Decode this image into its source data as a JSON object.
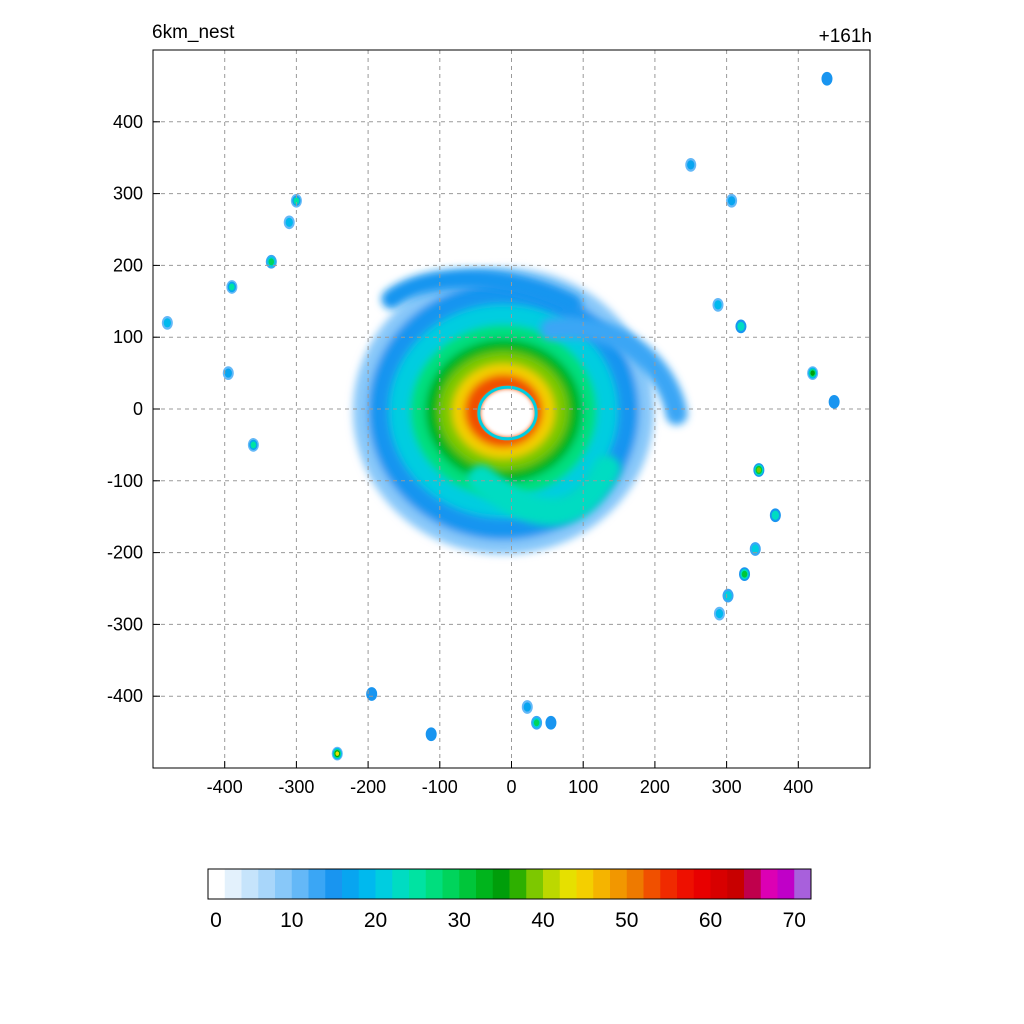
{
  "panel": {
    "left_title": "6km_nest",
    "right_title": "+161h"
  },
  "chart_data": {
    "type": "heatmap",
    "title": "6km_nest",
    "time_label": "+161h",
    "xlabel": "",
    "ylabel": "",
    "xlim": [
      -500,
      500
    ],
    "ylim": [
      -500,
      500
    ],
    "x_ticks": [
      -400,
      -300,
      -200,
      -100,
      0,
      100,
      200,
      300,
      400
    ],
    "y_ticks": [
      -400,
      -300,
      -200,
      -100,
      0,
      100,
      200,
      300,
      400
    ],
    "grid": true,
    "colorbar": {
      "min": 0,
      "max": 72,
      "step": 2,
      "tick_values": [
        0,
        10,
        20,
        30,
        40,
        50,
        60,
        70
      ],
      "colors": [
        "#ffffff",
        "#e3f1fc",
        "#c6e4fb",
        "#a8d6fa",
        "#88c8f9",
        "#64b8f7",
        "#3aa6f5",
        "#1995f0",
        "#08a5f0",
        "#00b9ee",
        "#00cde0",
        "#00dcc2",
        "#00e3a2",
        "#00de7e",
        "#00d45c",
        "#00c63a",
        "#00b41c",
        "#009e0a",
        "#2eb000",
        "#7dc800",
        "#bcd800",
        "#e6e000",
        "#f4cf00",
        "#f5b400",
        "#f29700",
        "#ee7a00",
        "#f05000",
        "#f02a00",
        "#ee1000",
        "#e80000",
        "#d80000",
        "#c80000",
        "#c0004c",
        "#dc00b4",
        "#c000c8",
        "#a860dc"
      ]
    },
    "field_features": {
      "storm_center": [
        0,
        0
      ],
      "eye_radius_km": 40,
      "max_value_near_center": 52,
      "scattered_cells": [
        {
          "x": 440,
          "y": 460,
          "v": 14
        },
        {
          "x": 250,
          "y": 340,
          "v": 16
        },
        {
          "x": 307,
          "y": 290,
          "v": 16
        },
        {
          "x": -300,
          "y": 290,
          "v": 24
        },
        {
          "x": -310,
          "y": 260,
          "v": 18
        },
        {
          "x": -335,
          "y": 205,
          "v": 28
        },
        {
          "x": -390,
          "y": 170,
          "v": 24
        },
        {
          "x": -480,
          "y": 120,
          "v": 18
        },
        {
          "x": -395,
          "y": 50,
          "v": 16
        },
        {
          "x": -360,
          "y": -50,
          "v": 24
        },
        {
          "x": 288,
          "y": 145,
          "v": 18
        },
        {
          "x": 320,
          "y": 115,
          "v": 22
        },
        {
          "x": 420,
          "y": 50,
          "v": 34
        },
        {
          "x": 450,
          "y": 10,
          "v": 14
        },
        {
          "x": 345,
          "y": -85,
          "v": 38
        },
        {
          "x": 368,
          "y": -148,
          "v": 22
        },
        {
          "x": 340,
          "y": -195,
          "v": 20
        },
        {
          "x": 325,
          "y": -230,
          "v": 30
        },
        {
          "x": 302,
          "y": -260,
          "v": 20
        },
        {
          "x": 290,
          "y": -285,
          "v": 18
        },
        {
          "x": -195,
          "y": -397,
          "v": 14
        },
        {
          "x": -112,
          "y": -453,
          "v": 14
        },
        {
          "x": 22,
          "y": -415,
          "v": 16
        },
        {
          "x": 35,
          "y": -437,
          "v": 28
        },
        {
          "x": 55,
          "y": -437,
          "v": 14
        },
        {
          "x": -243,
          "y": -480,
          "v": 42
        }
      ]
    }
  }
}
